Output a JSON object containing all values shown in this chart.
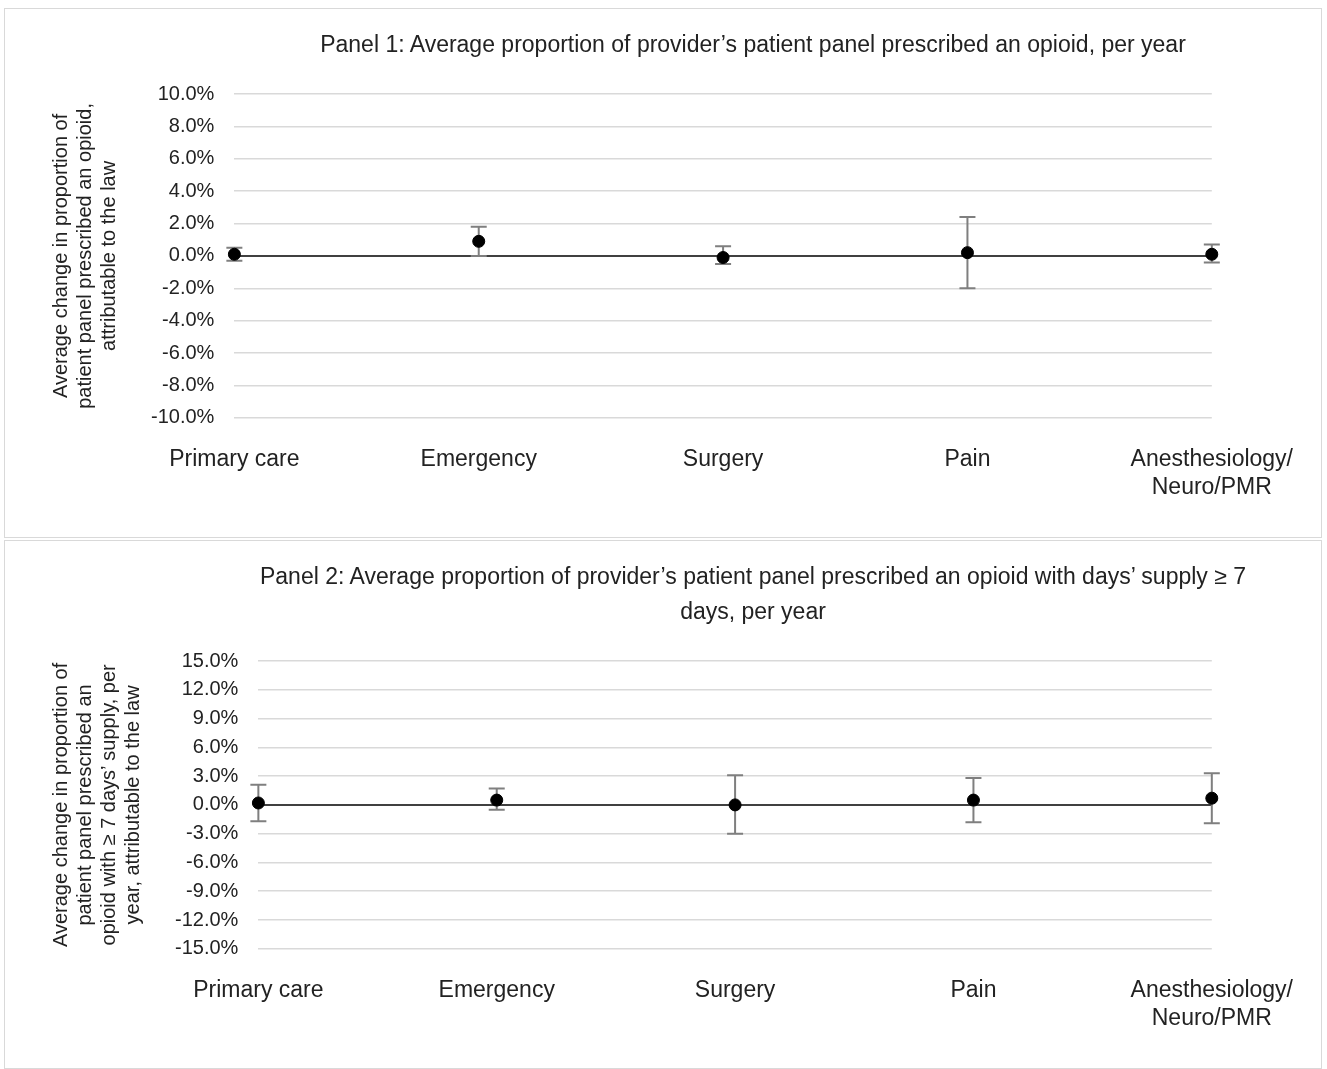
{
  "chart_data": [
    {
      "type": "scatter",
      "title": "Panel 1: Average proportion of provider’s patient panel prescribed an opioid, per year",
      "ylabel": "Average change in proportion of patient panel prescribed an opioid, attributable to the law",
      "categories": [
        "Primary care",
        "Emergency",
        "Surgery",
        "Pain",
        "Anesthesiology/Neuro/PMR"
      ],
      "values": [
        0.1,
        0.9,
        -0.1,
        0.2,
        0.1
      ],
      "errors": [
        [
          -0.3,
          0.5
        ],
        [
          0.0,
          1.8
        ],
        [
          -0.5,
          0.6
        ],
        [
          -2.0,
          2.4
        ],
        [
          -0.4,
          0.7
        ]
      ],
      "color": "#000000",
      "marker": "circle",
      "grid": "y",
      "legend": false,
      "ylim": [
        -10,
        10
      ],
      "yticks": [
        {
          "value": -10,
          "label": "-10.0%"
        },
        {
          "value": -8,
          "label": "-8.0%"
        },
        {
          "value": -6,
          "label": "-6.0%"
        },
        {
          "value": -4,
          "label": "-4.0%"
        },
        {
          "value": -2,
          "label": "-2.0%"
        },
        {
          "value": 0,
          "label": "0.0%"
        },
        {
          "value": 2,
          "label": "2.0%"
        },
        {
          "value": 4,
          "label": "4.0%"
        },
        {
          "value": 6,
          "label": "6.0%"
        },
        {
          "value": 8,
          "label": "8.0%"
        },
        {
          "value": 10,
          "label": "10.0%"
        }
      ]
    },
    {
      "type": "scatter",
      "title": "Panel 2: Average proportion of provider’s patient panel prescribed an opioid with days’ supply ≥ 7 days, per year",
      "ylabel": "Average change in proportion of patient panel prescribed an opioid with ≥ 7 days’ supply, per year, attributable to the law",
      "categories": [
        "Primary care",
        "Emergency",
        "Surgery",
        "Pain",
        "Anesthesiology/Neuro/PMR"
      ],
      "values": [
        0.2,
        0.5,
        0.0,
        0.5,
        0.7
      ],
      "errors": [
        [
          -1.7,
          2.1
        ],
        [
          -0.5,
          1.7
        ],
        [
          -3.0,
          3.1
        ],
        [
          -1.8,
          2.8
        ],
        [
          -1.9,
          3.3
        ]
      ],
      "color": "#000000",
      "marker": "circle",
      "grid": "y",
      "legend": false,
      "ylim": [
        -15,
        15
      ],
      "yticks": [
        {
          "value": -15,
          "label": "-15.0%"
        },
        {
          "value": -12,
          "label": "-12.0%"
        },
        {
          "value": -9,
          "label": "-9.0%"
        },
        {
          "value": -6,
          "label": "-6.0%"
        },
        {
          "value": -3,
          "label": "-3.0%"
        },
        {
          "value": 0,
          "label": "0.0%"
        },
        {
          "value": 3,
          "label": "3.0%"
        },
        {
          "value": 6,
          "label": "6.0%"
        },
        {
          "value": 9,
          "label": "9.0%"
        },
        {
          "value": 12,
          "label": "12.0%"
        },
        {
          "value": 15,
          "label": "15.0%"
        }
      ]
    }
  ]
}
